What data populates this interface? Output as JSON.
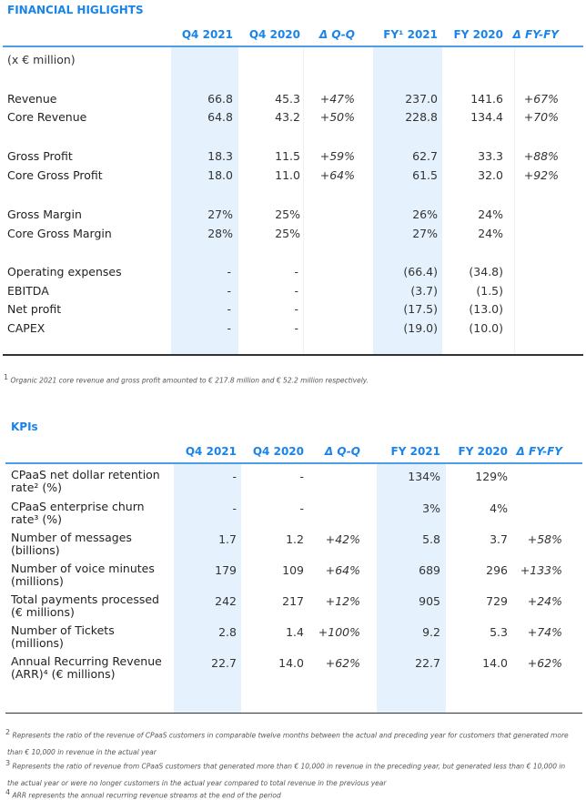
{
  "financial": {
    "title": "FINANCIAL HIGLIGHTS",
    "headers": [
      "Q4 2021",
      "Q4 2020",
      "Δ Q-Q",
      "FY¹ 2021",
      "FY 2020",
      "Δ FY-FY"
    ],
    "unit": "(x € million)",
    "rows": [
      {
        "label": "Revenue",
        "values": [
          "66.8",
          "45.3",
          "+47%",
          "237.0",
          "141.6",
          "+67%"
        ]
      },
      {
        "label": "Core Revenue",
        "values": [
          "64.8",
          "43.2",
          "+50%",
          "228.8",
          "134.4",
          "+70%"
        ]
      },
      {
        "label": "Gross Profit",
        "values": [
          "18.3",
          "11.5",
          "+59%",
          "62.7",
          "33.3",
          "+88%"
        ]
      },
      {
        "label": "Core Gross Profit",
        "values": [
          "18.0",
          "11.0",
          "+64%",
          "61.5",
          "32.0",
          "+92%"
        ]
      },
      {
        "label": "Gross Margin",
        "values": [
          "27%",
          "25%",
          "",
          "26%",
          "24%",
          ""
        ]
      },
      {
        "label": "Core Gross Margin",
        "values": [
          "28%",
          "25%",
          "",
          "27%",
          "24%",
          ""
        ]
      },
      {
        "label": "Operating expenses",
        "values": [
          "-",
          "-",
          "",
          "(66.4)",
          "(34.8)",
          ""
        ]
      },
      {
        "label": "EBITDA",
        "values": [
          "-",
          "-",
          "",
          "(3.7)",
          "(1.5)",
          ""
        ]
      },
      {
        "label": "Net profit",
        "values": [
          "-",
          "-",
          "",
          "(17.5)",
          "(13.0)",
          ""
        ]
      },
      {
        "label": "CAPEX",
        "values": [
          "-",
          "-",
          "",
          "(19.0)",
          "(10.0)",
          ""
        ]
      }
    ],
    "footnote_mark": "1",
    "footnote": "Organic 2021 core revenue and gross profit amounted to € 217.8 million and € 52.2 million respectively."
  },
  "kpis": {
    "title": "KPIs",
    "headers": [
      "Q4 2021",
      "Q4 2020",
      "Δ Q-Q",
      "FY 2021",
      "FY 2020",
      "Δ FY-FY"
    ],
    "rows": [
      {
        "label": "CPaaS net dollar retention rate² (%)",
        "values": [
          "-",
          "-",
          "",
          "134%",
          "129%",
          ""
        ]
      },
      {
        "label": "CPaaS enterprise churn rate³ (%)",
        "values": [
          "-",
          "-",
          "",
          "3%",
          "4%",
          ""
        ]
      },
      {
        "label": "Number of messages (billions)",
        "values": [
          "1.7",
          "1.2",
          "+42%",
          "5.8",
          "3.7",
          "+58%"
        ]
      },
      {
        "label": "Number of voice minutes (millions)",
        "values": [
          "179",
          "109",
          "+64%",
          "689",
          "296",
          "+133%"
        ]
      },
      {
        "label": "Total payments processed (€ millions)",
        "values": [
          "242",
          "217",
          "+12%",
          "905",
          "729",
          "+24%"
        ]
      },
      {
        "label": "Number of Tickets (millions)",
        "values": [
          "2.8",
          "1.4",
          "+100%",
          "9.2",
          "5.3",
          "+74%"
        ]
      },
      {
        "label": "Annual Recurring Revenue (ARR)⁴ (€ millions)",
        "values": [
          "22.7",
          "14.0",
          "+62%",
          "22.7",
          "14.0",
          "+62%"
        ]
      }
    ],
    "footnotes": [
      {
        "mark": "2",
        "line1": "Represents the ratio of the revenue of CPaaS customers in comparable twelve months between the actual and preceding year for customers that generated more",
        "line2": "than € 10,000 in revenue in the actual year"
      },
      {
        "mark": "3",
        "line1": "Represents the ratio of revenue from CPaaS customers that generated more than € 10,000 in revenue in the preceding year, but generated less than € 10,000 in",
        "line2": "the actual year or were no longer customers in the actual year compared to total revenue in the previous year"
      },
      {
        "mark": "4",
        "line1": "ARR represents the annual recurring revenue streams at the end of the period",
        "line2": ""
      }
    ]
  }
}
